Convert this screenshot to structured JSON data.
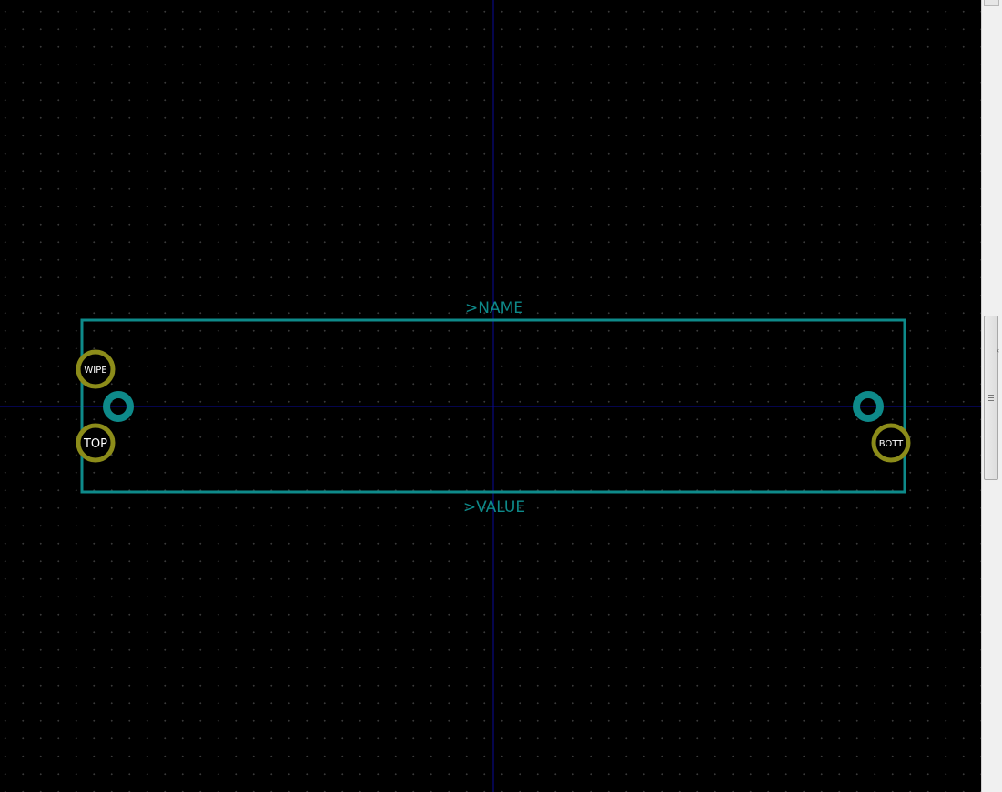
{
  "canvas": {
    "background_color": "#000000",
    "grid_dot_color": "#3a3a3a",
    "axis_color": "#0a0a9a",
    "outline_color": "#0e8a8a",
    "pad_ring_color": "#8c8c1a",
    "pad_label_color": "#ffffff"
  },
  "labels": {
    "name": ">NAME",
    "value": ">VALUE"
  },
  "pads": [
    {
      "id": "wipe",
      "label": "WIPE",
      "ring": "yellow"
    },
    {
      "id": "top",
      "label": "TOP",
      "ring": "yellow"
    },
    {
      "id": "bott",
      "label": "BOTT",
      "ring": "yellow"
    }
  ],
  "holes": [
    {
      "id": "left-hole"
    },
    {
      "id": "right-hole"
    }
  ],
  "scrollbar": {
    "orientation": "vertical",
    "grip_icon": "grip-lines-icon",
    "up_icon": "scroll-up-icon"
  }
}
